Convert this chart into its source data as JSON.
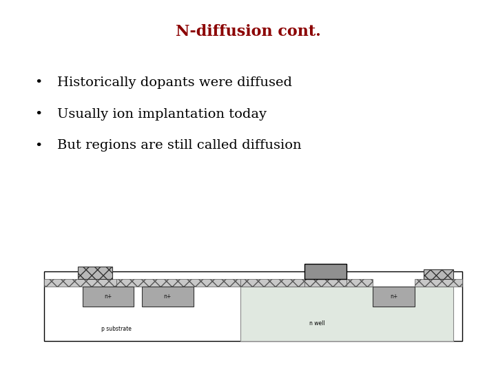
{
  "title": "N-diffusion cont.",
  "title_color": "#8B0000",
  "title_fontsize": 16,
  "title_fontweight": "bold",
  "bullets": [
    "Historically dopants were diffused",
    "Usually ion implantation today",
    "But regions are still called diffusion"
  ],
  "bullet_fontsize": 14,
  "bg_color": "#ffffff",
  "diagram": {
    "substrate_color": "#ffffff",
    "substrate_border": "#000000",
    "nwell_color": "#e0e8e0",
    "nwell_border": "#888888",
    "nplus_color": "#a8a8a8",
    "nplus_border": "#333333",
    "oxide_color": "#c8c8c8",
    "oxide_hatch": "xxx",
    "oxide_border": "#555555",
    "poly_color": "#909090",
    "poly_border": "#000000"
  }
}
